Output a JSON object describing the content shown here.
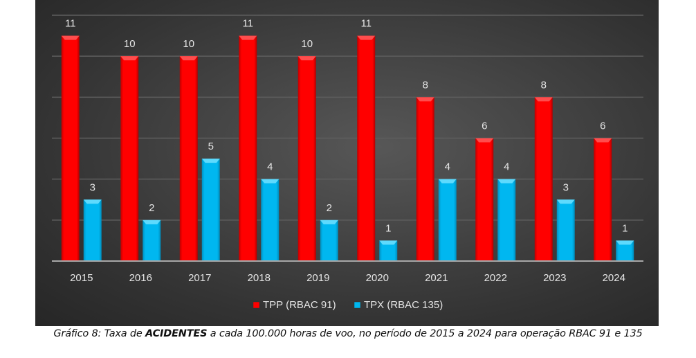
{
  "chart_data": {
    "type": "bar",
    "title": "",
    "xlabel": "",
    "ylabel": "",
    "ylim": [
      0,
      12
    ],
    "grid": true,
    "gridline_step": 2,
    "legend_position": "bottom",
    "categories": [
      "2015",
      "2016",
      "2017",
      "2018",
      "2019",
      "2020",
      "2021",
      "2022",
      "2023",
      "2024"
    ],
    "series": [
      {
        "name": "TPP (RBAC 91)",
        "color": "#ff0000",
        "values": [
          11,
          10,
          10,
          11,
          10,
          11,
          8,
          6,
          8,
          6
        ]
      },
      {
        "name": "TPX (RBAC 135)",
        "color": "#00b7f0",
        "values": [
          3,
          2,
          5,
          4,
          2,
          1,
          4,
          4,
          3,
          1
        ]
      }
    ]
  },
  "caption": {
    "prefix": "Gráfico 8: Taxa de ",
    "bold": "ACIDENTES",
    "suffix": " a cada 100.000 horas de voo, no período de 2015 a 2024 para operação RBAC 91 e 135"
  }
}
